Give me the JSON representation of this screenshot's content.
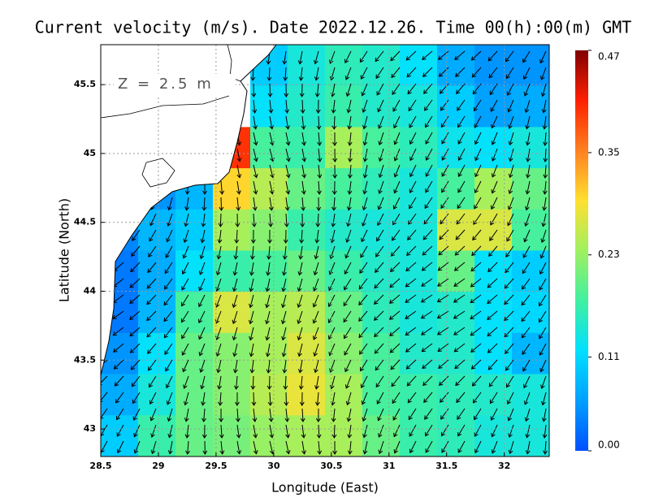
{
  "chart_data": {
    "type": "heatmap",
    "title": "Current velocity (m/s). Date 2022.12.26. Time 00(h):00(m) GMT",
    "annotation": "Z = 2.5 m",
    "x_label": "Longitude (East)",
    "y_label": "Latitude (North)",
    "xlim": [
      28.5,
      32.39
    ],
    "ylim": [
      42.8,
      45.79
    ],
    "xticks": [
      28.5,
      29,
      29.5,
      30,
      30.5,
      31,
      31.5,
      32
    ],
    "yticks": [
      43,
      43.5,
      44,
      44.5,
      45,
      45.5
    ],
    "grid": true,
    "clim": [
      0,
      0.47
    ],
    "cticks": [
      {
        "value": 0,
        "label": "0.00"
      },
      0.11,
      0.23,
      0.35,
      0.47
    ],
    "colormap": [
      "#0050ff",
      "#00a0ff",
      "#00e0ff",
      "#40f0a0",
      "#a0f060",
      "#ffe030",
      "#ff8020",
      "#ff2000",
      "#800000"
    ],
    "values": [
      [
        null,
        null,
        null,
        null,
        0.1,
        0.14,
        0.16,
        0.15,
        0.12,
        0.07,
        0.05,
        0.05
      ],
      [
        null,
        null,
        null,
        null,
        0.12,
        0.15,
        0.17,
        0.15,
        0.14,
        0.1,
        0.06,
        0.07
      ],
      [
        null,
        null,
        null,
        0.4,
        0.18,
        0.17,
        0.24,
        0.18,
        0.16,
        0.13,
        0.12,
        0.14
      ],
      [
        null,
        0.05,
        0.08,
        0.3,
        0.25,
        0.2,
        0.18,
        0.16,
        0.14,
        0.18,
        0.24,
        0.2
      ],
      [
        0.04,
        0.08,
        0.1,
        0.24,
        0.22,
        0.17,
        0.15,
        0.14,
        0.14,
        0.27,
        0.27,
        0.18
      ],
      [
        0.03,
        0.07,
        0.12,
        0.17,
        0.18,
        0.2,
        0.17,
        0.15,
        0.14,
        0.2,
        0.12,
        0.1
      ],
      [
        0.03,
        0.08,
        0.18,
        0.27,
        0.24,
        0.25,
        0.2,
        0.16,
        0.14,
        0.15,
        0.12,
        0.11
      ],
      [
        0.05,
        0.12,
        0.2,
        0.22,
        0.24,
        0.27,
        0.22,
        0.18,
        0.15,
        0.15,
        0.12,
        0.08
      ],
      [
        0.07,
        0.14,
        0.2,
        0.22,
        0.25,
        0.28,
        0.24,
        0.18,
        0.17,
        0.16,
        0.15,
        0.14
      ],
      [
        0.1,
        0.17,
        0.2,
        0.21,
        0.23,
        0.24,
        0.24,
        0.2,
        0.17,
        0.16,
        0.14,
        0.14
      ]
    ]
  }
}
